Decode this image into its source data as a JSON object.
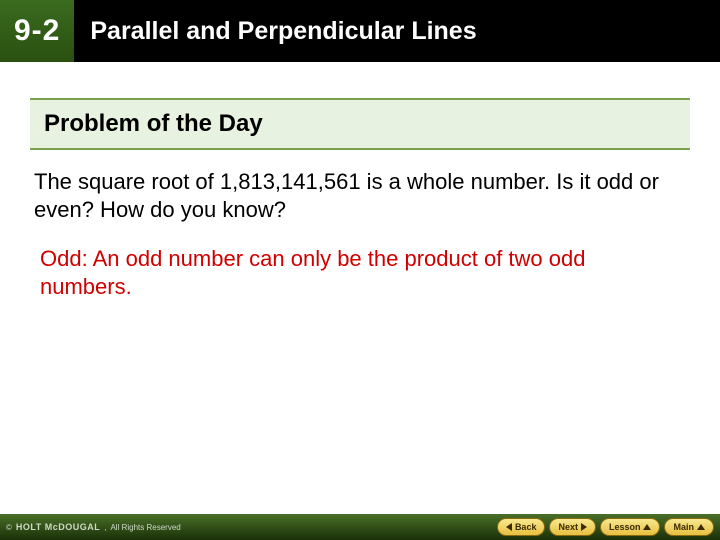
{
  "header": {
    "section_number": "9-2",
    "title": "Parallel and Perpendicular Lines"
  },
  "content": {
    "problem_title": "Problem of the Day",
    "question": "The square root of 1,813,141,561 is a whole number. Is it odd or even? How do you know?",
    "answer": "Odd: An odd number can only be the product of two odd numbers."
  },
  "footer": {
    "publisher": "HOLT McDOUGAL",
    "rights": "All Rights Reserved",
    "nav": {
      "back": "Back",
      "next": "Next",
      "lesson": "Lesson",
      "main": "Main"
    }
  },
  "colors": {
    "header_bg": "#000000",
    "section_bg": "#2a5010",
    "box_bg": "#e8f2e0",
    "box_border": "#7aa050",
    "answer_color": "#d00000",
    "footer_bg": "#1a3008",
    "btn_bg": "#e8c040"
  }
}
